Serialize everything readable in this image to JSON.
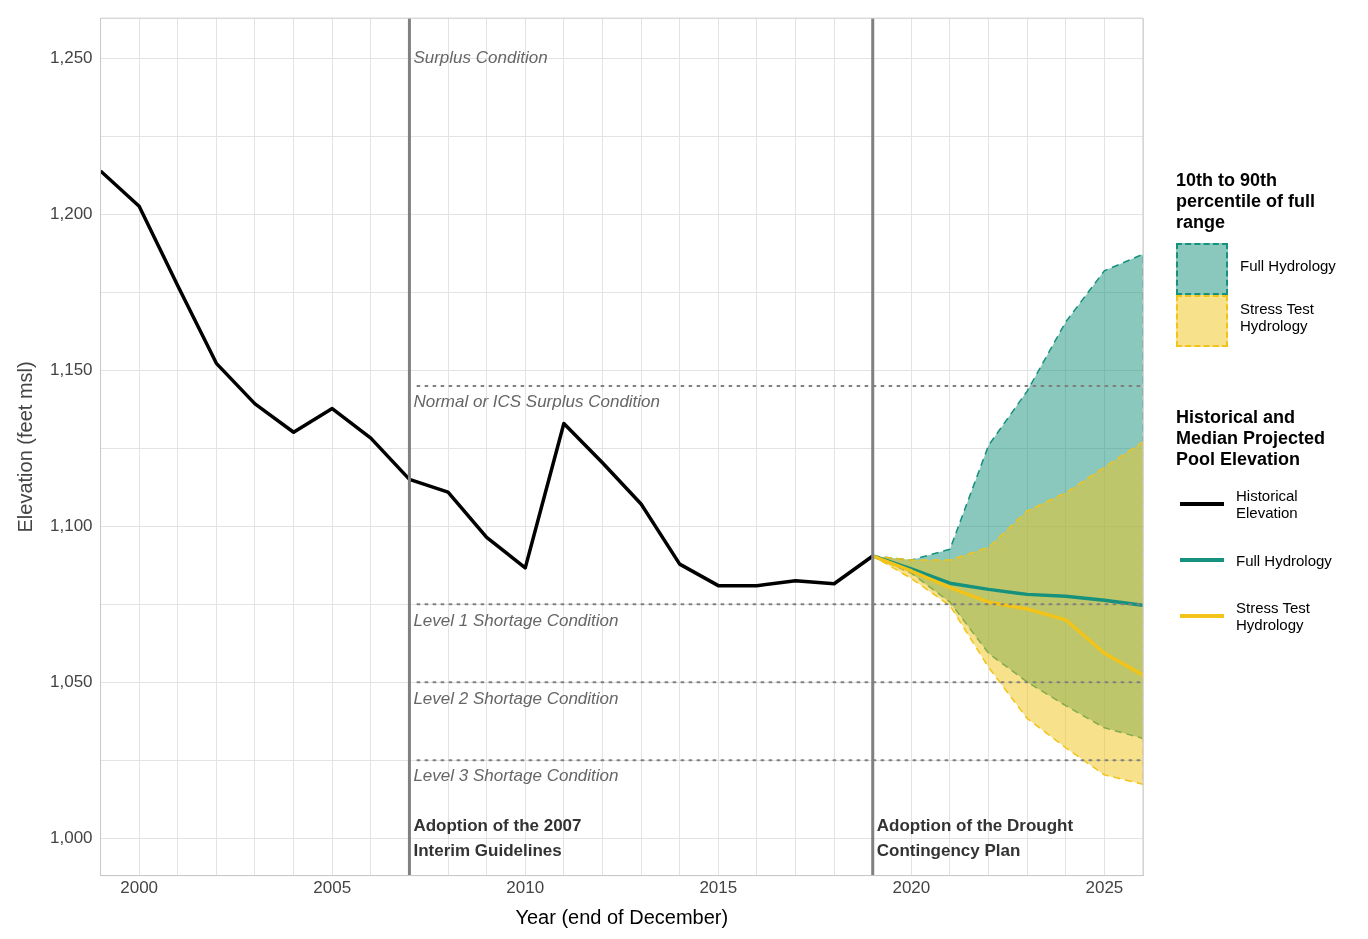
{
  "chart_data": {
    "type": "line",
    "xlabel": "Year (end of December)",
    "ylabel": "Elevation (feet msl)",
    "legend_title": [
      "10th to 90th percentile of full range",
      "Historical and Median Projected Pool Elevation"
    ],
    "xlim": [
      1999,
      2026
    ],
    "ylim": [
      988,
      1263
    ],
    "xticks": [
      {
        "value": 1999,
        "label": null
      },
      2000,
      {
        "value": 2001,
        "label": null
      },
      {
        "value": 2002,
        "label": null
      },
      {
        "value": 2003,
        "label": null
      },
      {
        "value": 2004,
        "label": null
      },
      2005,
      {
        "value": 2006,
        "label": null
      },
      {
        "value": 2008,
        "label": null
      },
      {
        "value": 2009,
        "label": null
      },
      2010,
      {
        "value": 2011,
        "label": null
      },
      {
        "value": 2012,
        "label": null
      },
      {
        "value": 2013,
        "label": null
      },
      {
        "value": 2014,
        "label": null
      },
      2015,
      {
        "value": 2016,
        "label": null
      },
      {
        "value": 2017,
        "label": null
      },
      {
        "value": 2018,
        "label": null
      },
      2020,
      {
        "value": 2021,
        "label": null
      },
      {
        "value": 2022,
        "label": null
      },
      {
        "value": 2023,
        "label": null
      },
      {
        "value": 2024,
        "label": null
      },
      2025,
      {
        "value": 2026,
        "label": null
      }
    ],
    "yticks": [
      {
        "value": 1000,
        "label": "1,000"
      },
      {
        "value": 1025,
        "label": null
      },
      {
        "value": 1050,
        "label": "1,050"
      },
      {
        "value": 1075,
        "label": null
      },
      {
        "value": 1100,
        "label": "1,100"
      },
      {
        "value": 1125,
        "label": null
      },
      {
        "value": 1150,
        "label": "1,150"
      },
      {
        "value": 1175,
        "label": null
      },
      {
        "value": 1200,
        "label": "1,200"
      },
      {
        "value": 1225,
        "label": null
      },
      {
        "value": 1250,
        "label": "1,250"
      }
    ],
    "grid": true,
    "legend": "right",
    "line_style": "solid",
    "marker": "none",
    "series": [
      {
        "name": "Historical Elevation",
        "color": "#000000",
        "x": [
          1999,
          2000,
          2001,
          2002,
          2003,
          2004,
          2005,
          2006,
          2007,
          2008,
          2009,
          2010,
          2011,
          2012,
          2013,
          2014,
          2015,
          2016,
          2017,
          2018,
          2019
        ],
        "values": [
          1214,
          1202.7,
          1177.2,
          1152.3,
          1139.3,
          1130.2,
          1137.8,
          1128.3,
          1115.1,
          1111,
          1096.5,
          1086.7,
          1133,
          1120.4,
          1107.2,
          1087.9,
          1081,
          1081,
          1082.6,
          1081.6,
          1090.5
        ]
      },
      {
        "name": "Full Hydrology",
        "color": "#16917e",
        "x": [
          2019,
          2020,
          2021,
          2022,
          2023,
          2024,
          2025,
          2026
        ],
        "values": [
          1090.5,
          1086.4,
          1081.8,
          1079.8,
          1078.2,
          1077.6,
          1076.3,
          1074.7
        ],
        "lower": [
          1090.5,
          1085,
          1075.7,
          1059.3,
          1050.1,
          1042.5,
          1035.4,
          1032
        ],
        "upper": [
          1090.5,
          1089.2,
          1092.7,
          1126,
          1143.4,
          1165.6,
          1182,
          1187.3
        ]
      },
      {
        "name": "Stress Test Hydrology",
        "color": "#f2c318",
        "x": [
          2019,
          2020,
          2021,
          2022,
          2023,
          2024,
          2025,
          2026
        ],
        "values": [
          1090.5,
          1085.7,
          1080.4,
          1075.7,
          1073.5,
          1070,
          1059.3,
          1052.3
        ],
        "lower": [
          1090.5,
          1083.3,
          1074.6,
          1054.8,
          1038.4,
          1029,
          1020.3,
          1017.3
        ],
        "upper": [
          1090.5,
          1089.2,
          1089.2,
          1093.3,
          1105,
          1110.8,
          1119,
          1127.1
        ]
      }
    ],
    "ref_lines": [
      {
        "axis": "x",
        "value": 2007,
        "label": "Adoption of the 2007 Interim Guidelines",
        "color": "#808080",
        "line_style": "solid"
      },
      {
        "axis": "x",
        "value": 2019,
        "label": "Adoption of the Drought Contingency Plan",
        "color": "#808080",
        "line_style": "solid"
      },
      {
        "axis": "y",
        "value": 1145,
        "label": "Normal or ICS Surplus Condition",
        "color": "#808080",
        "line_style": "dotted"
      },
      {
        "axis": "y",
        "value": 1075,
        "label": "Level 1 Shortage Condition",
        "color": "#808080",
        "line_style": "dotted"
      },
      {
        "axis": "y",
        "value": 1050,
        "label": "Level 2 Shortage Condition",
        "color": "#808080",
        "line_style": "dotted"
      },
      {
        "axis": "y",
        "value": 1025,
        "label": "Level 3 Shortage Condition",
        "color": "#808080",
        "line_style": "dotted"
      }
    ],
    "annotations": [
      "Surplus Condition"
    ]
  }
}
